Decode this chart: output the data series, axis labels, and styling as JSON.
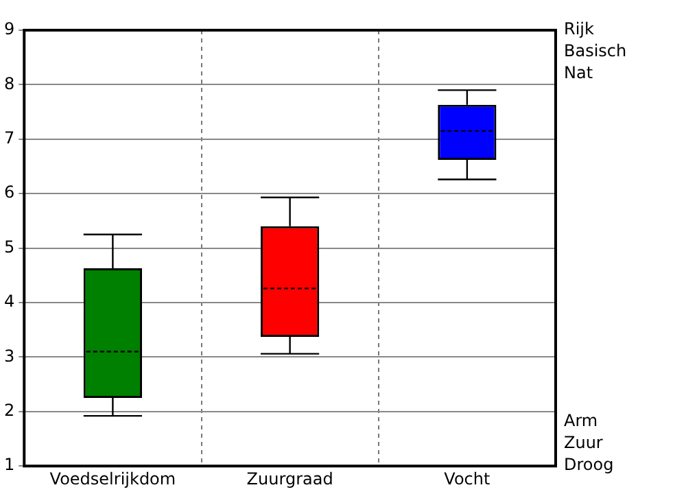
{
  "chart_data": {
    "type": "box",
    "categories": [
      "Voedselrijkdom",
      "Zuurgraad",
      "Vocht"
    ],
    "colors": [
      "#008000",
      "#ff0000",
      "#0000ff"
    ],
    "boxes": [
      {
        "low": 1.92,
        "q1": 2.25,
        "median": 3.1,
        "q3": 4.63,
        "high": 5.25
      },
      {
        "low": 3.06,
        "q1": 3.37,
        "median": 4.26,
        "q3": 5.4,
        "high": 5.93
      },
      {
        "low": 6.26,
        "q1": 6.62,
        "median": 7.15,
        "q3": 7.63,
        "high": 7.9
      }
    ],
    "ylim": [
      1,
      9
    ],
    "yticks": [
      1,
      2,
      3,
      4,
      5,
      6,
      7,
      8,
      9
    ],
    "grid": true,
    "annotations": [
      "Rijk",
      "Basisch",
      "Nat",
      "Arm",
      "Zuur",
      "Droog"
    ]
  }
}
